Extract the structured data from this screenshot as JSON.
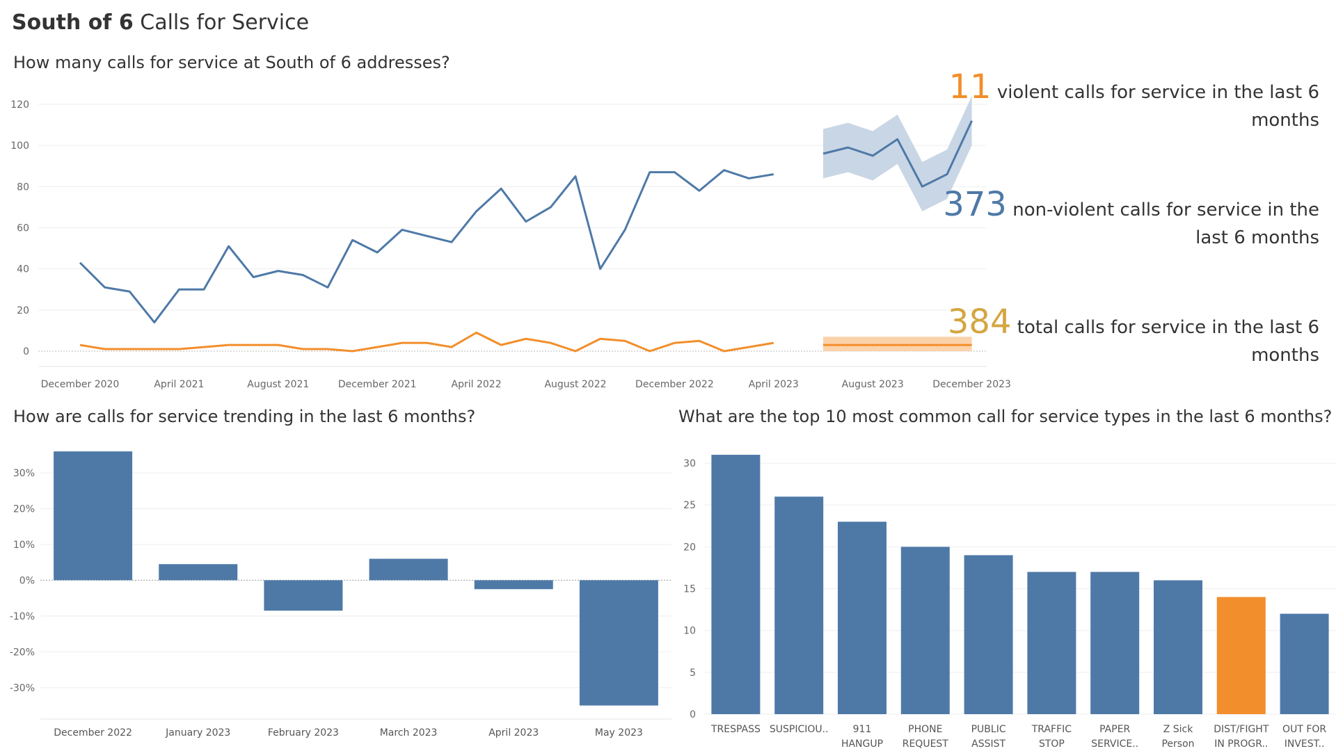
{
  "header": {
    "title_bold": "South of 6",
    "title_rest": "Calls for Service"
  },
  "colors": {
    "blue": "#4e79a7",
    "orange": "#f28e2b",
    "gold": "#d4a640",
    "band_blue": "#c9d6e5",
    "band_orange": "#fbd3ab"
  },
  "kpis": [
    {
      "value": "11",
      "text": "violent calls for service in the last 6 months",
      "color": "#f28e2b"
    },
    {
      "value": "373",
      "text": "non-violent calls for service in the last 6 months",
      "color": "#4e79a7"
    },
    {
      "value": "384",
      "text": "total calls for service in the last 6 months",
      "color": "#d4a640"
    }
  ],
  "chart_data": [
    {
      "type": "line",
      "title": "How many calls for service at South of 6 addresses?",
      "ylim": [
        0,
        120
      ],
      "yticks": [
        0,
        20,
        40,
        60,
        80,
        100,
        120
      ],
      "xticks": [
        {
          "label": "December 2020",
          "idx": 0
        },
        {
          "label": "April 2021",
          "idx": 4
        },
        {
          "label": "August 2021",
          "idx": 8
        },
        {
          "label": "December 2021",
          "idx": 12
        },
        {
          "label": "April 2022",
          "idx": 16
        },
        {
          "label": "August 2022",
          "idx": 20
        },
        {
          "label": "December 2022",
          "idx": 24
        },
        {
          "label": "April 2023",
          "idx": 28
        },
        {
          "label": "August 2023",
          "idx": 32
        },
        {
          "label": "December 2023",
          "idx": 36
        }
      ],
      "series": [
        {
          "color": "#4e79a7",
          "values": [
            43,
            31,
            29,
            14,
            30,
            30,
            51,
            36,
            39,
            37,
            31,
            54,
            48,
            59,
            56,
            53,
            68,
            79,
            63,
            70,
            85,
            40,
            59,
            87,
            87,
            78,
            88,
            84,
            86
          ]
        },
        {
          "color": "#f28e2b",
          "values": [
            3,
            1,
            1,
            1,
            1,
            2,
            3,
            3,
            3,
            1,
            1,
            0,
            2,
            4,
            4,
            2,
            9,
            3,
            6,
            4,
            0,
            6,
            5,
            0,
            4,
            5,
            0,
            2,
            4
          ]
        }
      ],
      "forecast": [
        {
          "color": "#4e79a7",
          "start_idx": 30,
          "values": [
            96,
            99,
            95,
            103,
            80,
            86,
            112
          ],
          "upper": [
            108,
            111,
            107,
            115,
            92,
            98,
            124
          ],
          "lower": [
            84,
            87,
            83,
            91,
            68,
            74,
            100
          ]
        },
        {
          "color": "#f28e2b",
          "start_idx": 30,
          "values": [
            3,
            3,
            3,
            3,
            3,
            3,
            3
          ],
          "upper": [
            7,
            7,
            7,
            7,
            7,
            7,
            7
          ],
          "lower": [
            0,
            0,
            0,
            0,
            0,
            0,
            0
          ]
        }
      ]
    },
    {
      "type": "bar",
      "title": "How are calls for service trending in the last 6 months?",
      "categories": [
        "December 2022",
        "January 2023",
        "February 2023",
        "March 2023",
        "April 2023",
        "May 2023"
      ],
      "values": [
        36,
        4.5,
        -8.5,
        6,
        -2.5,
        -35
      ],
      "ylim": [
        -38,
        37
      ],
      "yticks": [
        30,
        20,
        10,
        0,
        -10,
        -20,
        -30
      ],
      "ytick_labels": [
        "30%",
        "20%",
        "10%",
        "0%",
        "-10%",
        "-20%",
        "-30%"
      ]
    },
    {
      "type": "bar",
      "title": "What are the top 10 most common call for service types in the last 6 months?",
      "categories": [
        [
          "TRESPASS"
        ],
        [
          "SUSPICIOU.."
        ],
        [
          "911",
          "HANGUP"
        ],
        [
          "PHONE",
          "REQUEST"
        ],
        [
          "PUBLIC",
          "ASSIST"
        ],
        [
          "TRAFFIC",
          "STOP"
        ],
        [
          "PAPER",
          "SERVICE.."
        ],
        [
          "Z Sick",
          "Person"
        ],
        [
          "DIST/FIGHT",
          "IN PROGR.."
        ],
        [
          "OUT FOR",
          "INVEST.."
        ]
      ],
      "values": [
        31,
        26,
        23,
        20,
        19,
        17,
        17,
        16,
        14,
        12
      ],
      "bar_colors": [
        "#4e79a7",
        "#4e79a7",
        "#4e79a7",
        "#4e79a7",
        "#4e79a7",
        "#4e79a7",
        "#4e79a7",
        "#4e79a7",
        "#f28e2b",
        "#4e79a7"
      ],
      "ylim": [
        0,
        32
      ],
      "yticks": [
        0,
        5,
        10,
        15,
        20,
        25,
        30
      ]
    }
  ]
}
